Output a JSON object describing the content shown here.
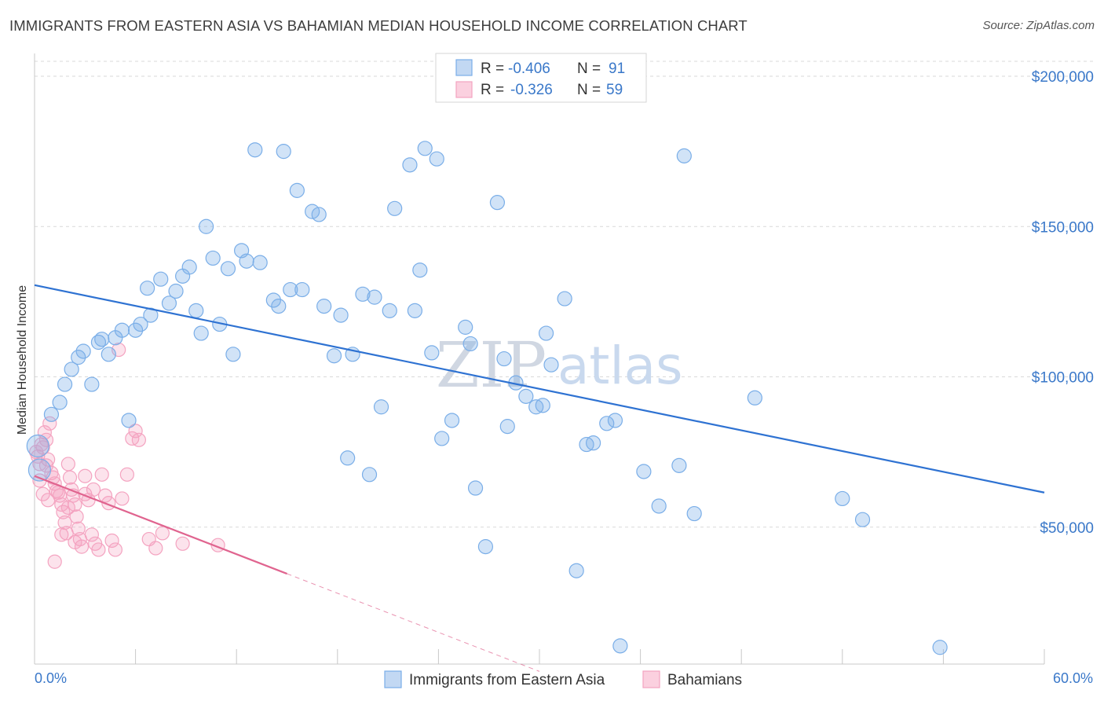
{
  "header": {
    "title": "IMMIGRANTS FROM EASTERN ASIA VS BAHAMIAN MEDIAN HOUSEHOLD INCOME CORRELATION CHART",
    "source": "Source: ZipAtlas.com"
  },
  "legend": {
    "r_label": "R =",
    "n_label": "N =",
    "series1": {
      "r": "-0.406",
      "n": "91"
    },
    "series2": {
      "r": "-0.326",
      "n": "59"
    }
  },
  "watermark": {
    "zip": "ZIP",
    "atlas": "atlas"
  },
  "chart_data": {
    "type": "scatter",
    "title": "IMMIGRANTS FROM EASTERN ASIA VS BAHAMIAN MEDIAN HOUSEHOLD INCOME CORRELATION CHART",
    "xlabel": "",
    "ylabel": "Median Household Income",
    "xlim": [
      0,
      60
    ],
    "ylim": [
      0,
      210000
    ],
    "x_tick_labels": [
      "0.0%",
      "60.0%"
    ],
    "y_ticks": [
      {
        "value": 50000,
        "label": "$50,000"
      },
      {
        "value": 100000,
        "label": "$100,000"
      },
      {
        "value": 150000,
        "label": "$150,000"
      },
      {
        "value": 200000,
        "label": "$200,000"
      }
    ],
    "colors": {
      "series1": "#7aaee8",
      "series1_line": "#2e72d2",
      "series2": "#f4a3c0",
      "series2_line": "#e0648f",
      "grid": "#d9d9d9",
      "axis_text": "#3a78c9"
    },
    "series": [
      {
        "name": "Immigrants from Eastern Asia",
        "trend": {
          "x0": 0,
          "y0": 130500,
          "x1": 60,
          "y1": 61500
        },
        "points": [
          [
            0.2,
            77000
          ],
          [
            0.3,
            69000
          ],
          [
            1.0,
            87500
          ],
          [
            1.5,
            91500
          ],
          [
            1.8,
            97500
          ],
          [
            2.2,
            102500
          ],
          [
            2.6,
            106500
          ],
          [
            2.9,
            108500
          ],
          [
            3.4,
            97500
          ],
          [
            3.8,
            111500
          ],
          [
            4.0,
            112500
          ],
          [
            4.4,
            107500
          ],
          [
            4.8,
            113000
          ],
          [
            5.2,
            115500
          ],
          [
            5.6,
            85500
          ],
          [
            6.0,
            115500
          ],
          [
            6.3,
            117500
          ],
          [
            6.9,
            120500
          ],
          [
            6.7,
            129500
          ],
          [
            7.5,
            132500
          ],
          [
            8.0,
            124500
          ],
          [
            8.4,
            128500
          ],
          [
            8.8,
            133500
          ],
          [
            9.2,
            136500
          ],
          [
            9.6,
            122000
          ],
          [
            9.9,
            114500
          ],
          [
            10.2,
            150000
          ],
          [
            10.6,
            139500
          ],
          [
            11.0,
            117500
          ],
          [
            11.5,
            136000
          ],
          [
            11.8,
            107500
          ],
          [
            12.3,
            142000
          ],
          [
            12.6,
            138500
          ],
          [
            13.4,
            138000
          ],
          [
            13.1,
            175500
          ],
          [
            14.2,
            125500
          ],
          [
            14.5,
            123500
          ],
          [
            14.8,
            175000
          ],
          [
            15.2,
            129000
          ],
          [
            15.6,
            162000
          ],
          [
            15.9,
            129000
          ],
          [
            16.5,
            155000
          ],
          [
            16.9,
            154000
          ],
          [
            17.2,
            123500
          ],
          [
            17.8,
            107000
          ],
          [
            18.2,
            120500
          ],
          [
            18.6,
            73000
          ],
          [
            18.9,
            107500
          ],
          [
            19.5,
            127500
          ],
          [
            19.9,
            67500
          ],
          [
            20.2,
            126500
          ],
          [
            20.6,
            90000
          ],
          [
            21.1,
            122000
          ],
          [
            21.4,
            156000
          ],
          [
            22.3,
            170500
          ],
          [
            22.6,
            122000
          ],
          [
            22.9,
            135500
          ],
          [
            23.2,
            176000
          ],
          [
            23.6,
            108000
          ],
          [
            23.9,
            172500
          ],
          [
            24.2,
            79500
          ],
          [
            24.8,
            85500
          ],
          [
            25.6,
            116500
          ],
          [
            25.9,
            111000
          ],
          [
            26.2,
            63000
          ],
          [
            26.8,
            43500
          ],
          [
            27.5,
            158000
          ],
          [
            27.9,
            106000
          ],
          [
            28.1,
            83500
          ],
          [
            28.6,
            98000
          ],
          [
            29.2,
            93500
          ],
          [
            29.8,
            90000
          ],
          [
            30.2,
            90500
          ],
          [
            30.4,
            114500
          ],
          [
            30.7,
            104000
          ],
          [
            31.5,
            126000
          ],
          [
            32.2,
            35500
          ],
          [
            32.8,
            77500
          ],
          [
            33.2,
            78000
          ],
          [
            34.0,
            84500
          ],
          [
            34.5,
            85500
          ],
          [
            34.8,
            10500
          ],
          [
            36.2,
            68500
          ],
          [
            37.1,
            57000
          ],
          [
            38.3,
            70500
          ],
          [
            38.6,
            173500
          ],
          [
            39.2,
            54500
          ],
          [
            42.8,
            93000
          ],
          [
            48.0,
            59500
          ],
          [
            49.2,
            52500
          ],
          [
            53.8,
            10000
          ]
        ]
      },
      {
        "name": "Bahamians",
        "trend": {
          "x0": 0,
          "y0": 67000,
          "x1": 15,
          "y1": 34500
        },
        "trend_dashed": {
          "x0": 15,
          "y0": 34500,
          "x1": 30,
          "y1": 2000
        },
        "points": [
          [
            0.1,
            75000
          ],
          [
            0.2,
            73500
          ],
          [
            0.3,
            71000
          ],
          [
            0.4,
            77500
          ],
          [
            0.5,
            76500
          ],
          [
            0.6,
            81500
          ],
          [
            0.7,
            79000
          ],
          [
            0.8,
            72500
          ],
          [
            0.9,
            84500
          ],
          [
            1.0,
            68000
          ],
          [
            1.1,
            66500
          ],
          [
            1.2,
            64500
          ],
          [
            1.3,
            62000
          ],
          [
            1.4,
            61500
          ],
          [
            1.5,
            60500
          ],
          [
            1.6,
            57500
          ],
          [
            1.7,
            55000
          ],
          [
            1.8,
            51500
          ],
          [
            1.9,
            48000
          ],
          [
            2.0,
            71000
          ],
          [
            2.1,
            66500
          ],
          [
            2.2,
            62500
          ],
          [
            2.3,
            60500
          ],
          [
            2.4,
            57500
          ],
          [
            2.5,
            53500
          ],
          [
            2.6,
            49500
          ],
          [
            2.7,
            46000
          ],
          [
            2.8,
            43500
          ],
          [
            3.0,
            67000
          ],
          [
            3.2,
            59000
          ],
          [
            3.4,
            47500
          ],
          [
            3.6,
            44500
          ],
          [
            3.8,
            42500
          ],
          [
            4.0,
            67500
          ],
          [
            4.2,
            60500
          ],
          [
            4.4,
            58000
          ],
          [
            4.6,
            45500
          ],
          [
            4.8,
            42500
          ],
          [
            5.0,
            109000
          ],
          [
            5.2,
            59500
          ],
          [
            5.5,
            67500
          ],
          [
            5.8,
            79500
          ],
          [
            6.0,
            82000
          ],
          [
            6.2,
            79000
          ],
          [
            6.8,
            46000
          ],
          [
            7.2,
            43000
          ],
          [
            7.6,
            48000
          ],
          [
            8.8,
            44500
          ],
          [
            10.9,
            44000
          ],
          [
            0.3,
            65500
          ],
          [
            0.5,
            61000
          ],
          [
            0.7,
            70500
          ],
          [
            1.2,
            38500
          ],
          [
            1.6,
            47500
          ],
          [
            2.0,
            56500
          ],
          [
            2.4,
            45000
          ],
          [
            3.0,
            61000
          ],
          [
            3.5,
            62500
          ],
          [
            0.8,
            59000
          ]
        ]
      }
    ]
  },
  "bottom_legend": {
    "item1": "Immigrants from Eastern Asia",
    "item2": "Bahamians"
  }
}
